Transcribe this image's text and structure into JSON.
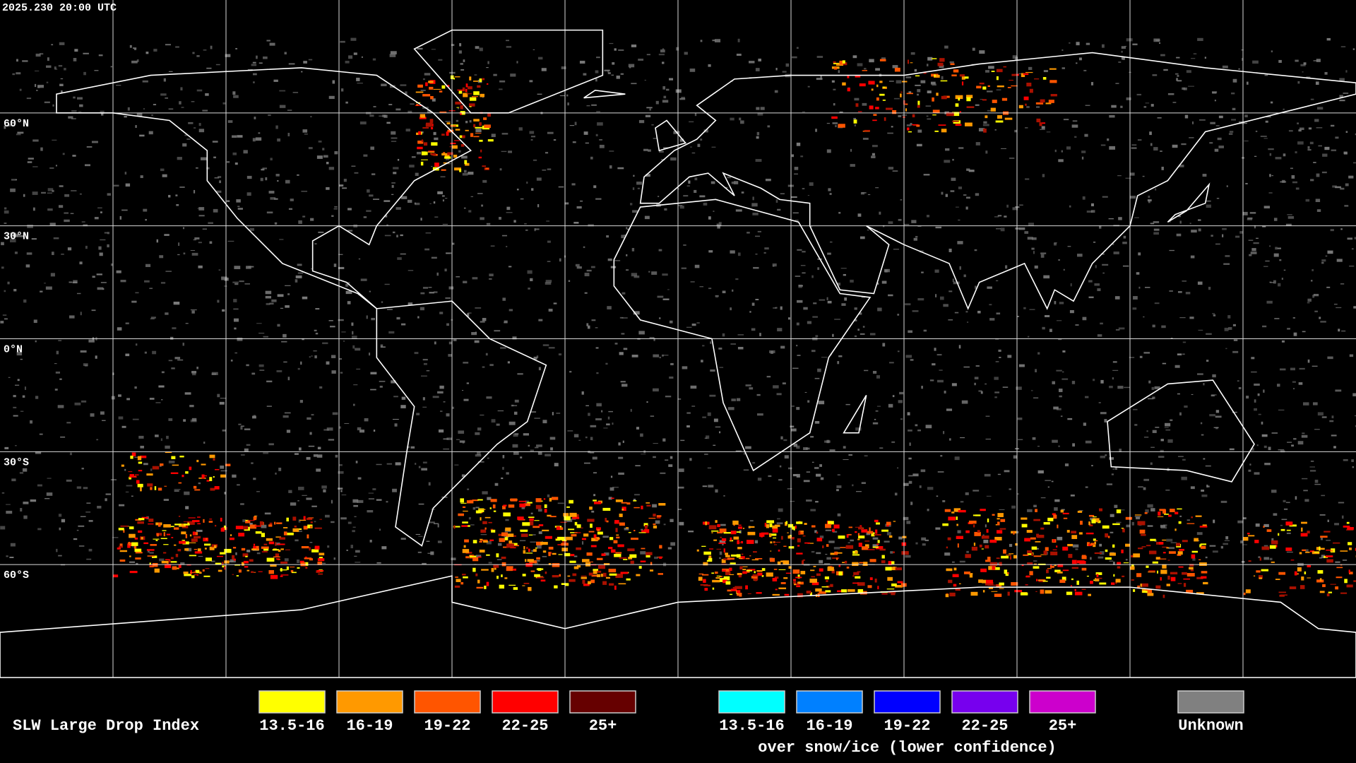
{
  "timestamp": "2025.230 20:00 UTC",
  "latitude_labels": [
    "60°N",
    "30°N",
    "0°N",
    "30°S",
    "60°S"
  ],
  "legend": {
    "title": "SLW Large Drop Index",
    "groups": [
      {
        "items": [
          {
            "label": "13.5-16",
            "color": "#ffff00"
          },
          {
            "label": "16-19",
            "color": "#ff9900"
          },
          {
            "label": "19-22",
            "color": "#ff5500"
          },
          {
            "label": "22-25",
            "color": "#ff0000"
          },
          {
            "label": "25+",
            "color": "#660000"
          }
        ]
      },
      {
        "items": [
          {
            "label": "13.5-16",
            "color": "#00ffff"
          },
          {
            "label": "16-19",
            "color": "#0080ff"
          },
          {
            "label": "19-22",
            "color": "#0000ff"
          },
          {
            "label": "22-25",
            "color": "#7700ee"
          },
          {
            "label": "25+",
            "color": "#cc00cc"
          }
        ],
        "caption": "over snow/ice (lower confidence)"
      },
      {
        "items": [
          {
            "label": "Unknown",
            "color": "#808080"
          }
        ]
      }
    ]
  }
}
